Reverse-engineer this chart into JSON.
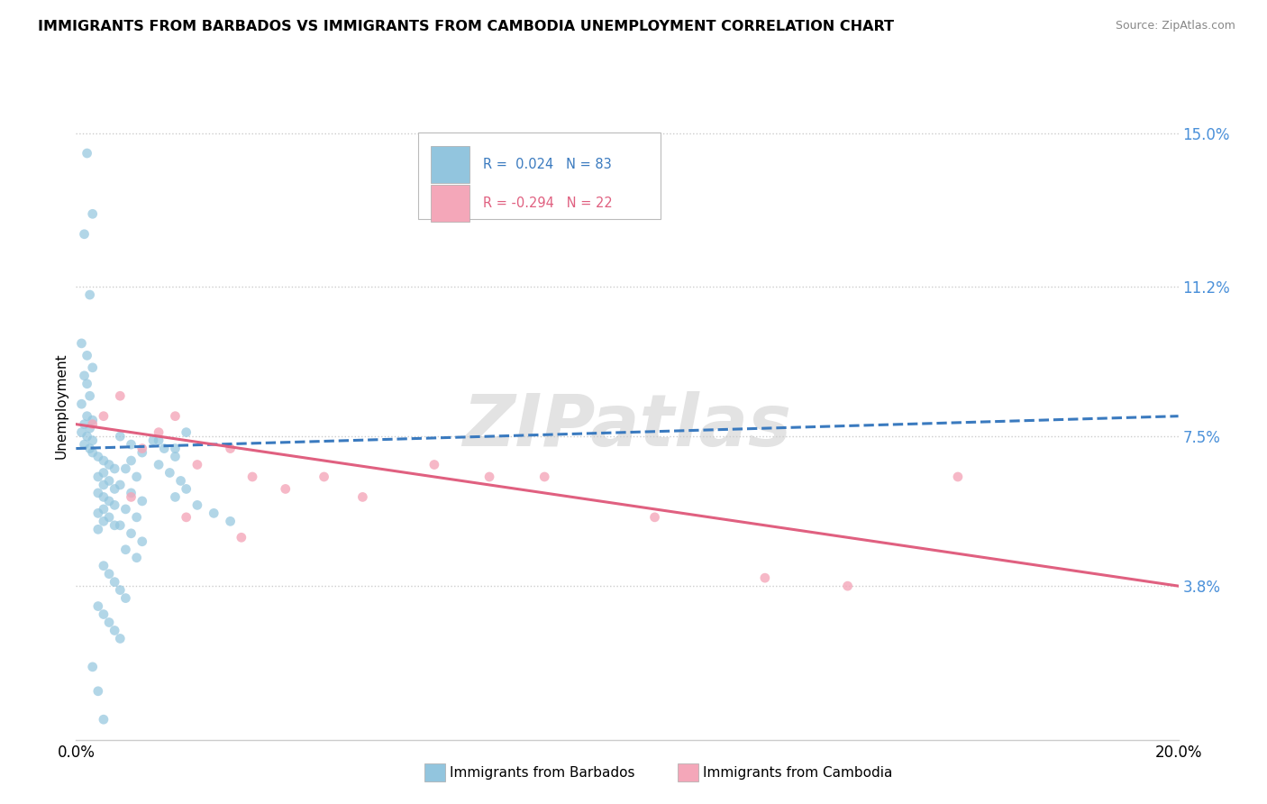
{
  "title": "IMMIGRANTS FROM BARBADOS VS IMMIGRANTS FROM CAMBODIA UNEMPLOYMENT CORRELATION CHART",
  "source": "Source: ZipAtlas.com",
  "ylabel": "Unemployment",
  "ytick_values": [
    3.8,
    7.5,
    11.2,
    15.0
  ],
  "xlim": [
    0.0,
    20.0
  ],
  "ylim": [
    0.0,
    16.5
  ],
  "r_barbados": 0.024,
  "n_barbados": 83,
  "r_cambodia": -0.294,
  "n_cambodia": 22,
  "color_barbados": "#92c5de",
  "color_cambodia": "#f4a7b9",
  "trendline_barbados_color": "#3a7abf",
  "trendline_cambodia_color": "#e06080",
  "barbados_x": [
    0.2,
    0.3,
    0.15,
    0.25,
    0.1,
    0.2,
    0.3,
    0.15,
    0.2,
    0.25,
    0.1,
    0.2,
    0.3,
    0.15,
    0.25,
    0.1,
    0.2,
    0.3,
    0.15,
    0.25,
    0.3,
    0.4,
    0.5,
    0.6,
    0.7,
    0.5,
    0.4,
    0.6,
    0.5,
    0.7,
    0.4,
    0.5,
    0.6,
    0.7,
    0.5,
    0.4,
    0.6,
    0.5,
    0.7,
    0.4,
    0.8,
    1.0,
    1.2,
    1.0,
    0.9,
    1.1,
    0.8,
    1.0,
    1.2,
    0.9,
    1.1,
    0.8,
    1.0,
    1.2,
    0.9,
    1.1,
    1.4,
    1.6,
    1.8,
    1.5,
    1.7,
    1.9,
    2.0,
    1.8,
    2.2,
    2.5,
    2.8,
    2.0,
    1.5,
    1.8,
    0.5,
    0.6,
    0.7,
    0.8,
    0.9,
    0.4,
    0.5,
    0.6,
    0.7,
    0.8,
    0.3,
    0.4,
    0.5
  ],
  "barbados_y": [
    14.5,
    13.0,
    12.5,
    11.0,
    9.8,
    9.5,
    9.2,
    9.0,
    8.8,
    8.5,
    8.3,
    8.0,
    7.9,
    7.8,
    7.7,
    7.6,
    7.5,
    7.4,
    7.3,
    7.2,
    7.1,
    7.0,
    6.9,
    6.8,
    6.7,
    6.6,
    6.5,
    6.4,
    6.3,
    6.2,
    6.1,
    6.0,
    5.9,
    5.8,
    5.7,
    5.6,
    5.5,
    5.4,
    5.3,
    5.2,
    7.5,
    7.3,
    7.1,
    6.9,
    6.7,
    6.5,
    6.3,
    6.1,
    5.9,
    5.7,
    5.5,
    5.3,
    5.1,
    4.9,
    4.7,
    4.5,
    7.4,
    7.2,
    7.0,
    6.8,
    6.6,
    6.4,
    6.2,
    6.0,
    5.8,
    5.6,
    5.4,
    7.6,
    7.4,
    7.2,
    4.3,
    4.1,
    3.9,
    3.7,
    3.5,
    3.3,
    3.1,
    2.9,
    2.7,
    2.5,
    1.8,
    1.2,
    0.5
  ],
  "cambodia_x": [
    0.3,
    0.5,
    0.8,
    1.2,
    1.5,
    1.8,
    2.2,
    2.8,
    3.2,
    3.8,
    4.5,
    5.2,
    6.5,
    7.5,
    8.5,
    10.5,
    12.5,
    14.0,
    16.0,
    1.0,
    2.0,
    3.0
  ],
  "cambodia_y": [
    7.8,
    8.0,
    8.5,
    7.2,
    7.6,
    8.0,
    6.8,
    7.2,
    6.5,
    6.2,
    6.5,
    6.0,
    6.8,
    6.5,
    6.5,
    5.5,
    4.0,
    3.8,
    6.5,
    6.0,
    5.5,
    5.0
  ]
}
